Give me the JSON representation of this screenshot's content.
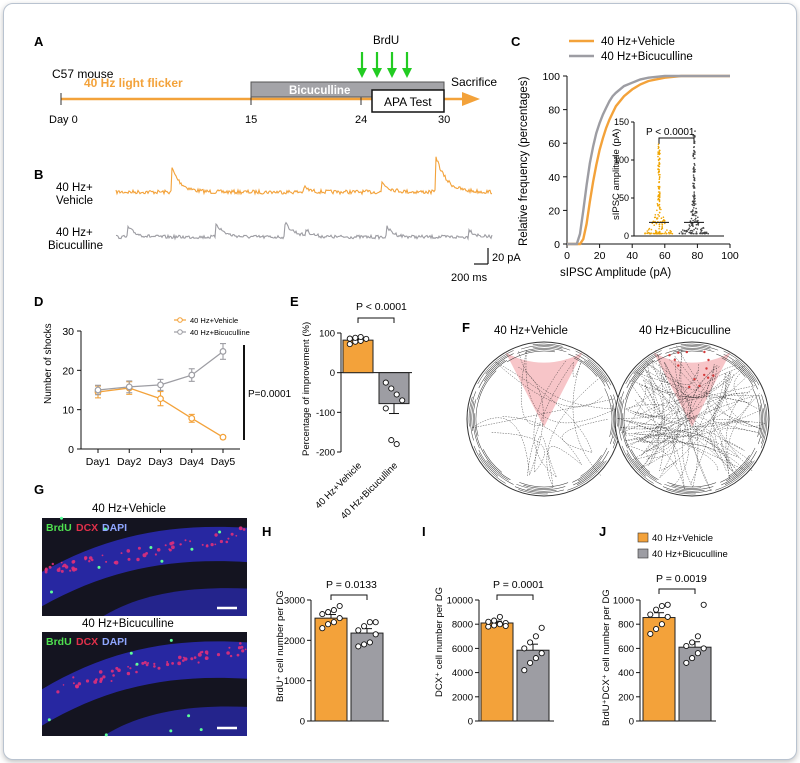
{
  "colors": {
    "vehicle": "#f3a23a",
    "bicuculline": "#9d9da3",
    "star": "#f0a500",
    "axis": "#111111",
    "cone": "#f7c5c8",
    "green": "#22cc22"
  },
  "panels": {
    "A": "A",
    "B": "B",
    "C": "C",
    "D": "D",
    "E": "E",
    "F": "F",
    "G": "G",
    "H": "H",
    "I": "I",
    "J": "J"
  },
  "timeline": {
    "mouse": "C57 mouse",
    "flicker": "40 Hz light flicker",
    "drug": "Bicuculline",
    "brdu": "BrdU",
    "test": "APA Test",
    "sacrifice": "Sacrifice",
    "day0": "Day 0",
    "d15": "15",
    "d24": "24",
    "d30": "30"
  },
  "traces": {
    "vehicle": "40 Hz+\nVehicle",
    "bicuculline": "40 Hz+\nBicuculline",
    "vehicle_l1": "40 Hz+",
    "vehicle_l2": "Vehicle",
    "bic_l1": "40 Hz+",
    "bic_l2": "Bicuculline",
    "scale_y": "20 pA",
    "scale_x": "200 ms"
  },
  "chart_data": [
    {
      "panel": "C",
      "type": "line",
      "xlabel": "sIPSC Amplitude (pA)",
      "ylabel": "Relative frequency (percentages)",
      "xlim": [
        0,
        100
      ],
      "ylim": [
        0,
        100
      ],
      "xticks": [
        "0",
        "20",
        "40",
        "60",
        "80",
        "100"
      ],
      "yticks": [
        "0",
        "20",
        "40",
        "60",
        "80",
        "100"
      ],
      "legend": "top",
      "series": [
        {
          "name": "40 Hz+Vehicle",
          "x": [
            0,
            8,
            10,
            12,
            14,
            16,
            18,
            20,
            22,
            24,
            26,
            28,
            30,
            35,
            40,
            45,
            50,
            60,
            70,
            100
          ],
          "y": [
            0,
            0,
            3,
            12,
            25,
            37,
            47,
            56,
            63,
            69,
            74,
            78,
            82,
            88,
            92,
            95,
            97,
            99,
            100,
            100
          ]
        },
        {
          "name": "40 Hz+Bicuculline",
          "x": [
            0,
            6,
            8,
            10,
            12,
            14,
            16,
            18,
            20,
            22,
            24,
            26,
            28,
            30,
            35,
            40,
            45,
            50,
            60,
            100
          ],
          "y": [
            0,
            0,
            6,
            20,
            35,
            48,
            58,
            66,
            72,
            77,
            81,
            85,
            88,
            90,
            94,
            96,
            98,
            99,
            100,
            100
          ]
        }
      ],
      "inset": {
        "type": "violin",
        "ylabel": "sIPSC amplitude (pA)",
        "ylim": [
          0,
          150
        ],
        "yticks": [
          "0",
          "50",
          "100",
          "150"
        ],
        "p_text": "P < 0.0001",
        "groups": [
          "40 Hz+Vehicle",
          "40 Hz+Bicuculline"
        ]
      }
    },
    {
      "panel": "D",
      "type": "line",
      "xlabel": "",
      "ylabel": "Number of shocks",
      "categories": [
        "Day1",
        "Day2",
        "Day3",
        "Day4",
        "Day5"
      ],
      "ylim": [
        0,
        30
      ],
      "yticks": [
        "0",
        "10",
        "20",
        "30"
      ],
      "legend": "top-right",
      "series": [
        {
          "name": "40 Hz+Vehicle",
          "values": [
            14.5,
            15.5,
            12.8,
            7.8,
            3.0
          ],
          "err": [
            1.5,
            1.6,
            1.8,
            1.0,
            0.4
          ]
        },
        {
          "name": "40 Hz+Bicuculline",
          "values": [
            15.0,
            15.8,
            16.3,
            18.8,
            24.8
          ],
          "err": [
            1.2,
            1.5,
            1.4,
            1.6,
            2.0
          ]
        }
      ],
      "p_text": "P=0.0001"
    },
    {
      "panel": "E",
      "type": "bar",
      "ylabel": "Percentage of improvement (%)",
      "categories": [
        "40 Hz+Vehicle",
        "40 Hz+Bicuculline"
      ],
      "values": [
        82,
        -78
      ],
      "err": [
        6,
        25
      ],
      "points": [
        [
          72,
          78,
          80,
          85,
          86,
          88,
          90
        ],
        [
          -25,
          -40,
          -55,
          -70,
          -90,
          -170,
          -180
        ]
      ],
      "ylim": [
        -200,
        100
      ],
      "yticks": [
        "100",
        "0",
        "-100",
        "-200"
      ],
      "p_text": "P < 0.0001"
    },
    {
      "panel": "H",
      "type": "bar",
      "ylabel": "BrdU⁺ cell number per DG",
      "categories": [
        "40 Hz+Vehicle",
        "40 Hz+Bicuculline"
      ],
      "values": [
        2550,
        2180
      ],
      "err": [
        90,
        110
      ],
      "points": [
        [
          2300,
          2400,
          2450,
          2550,
          2650,
          2700,
          2750,
          2850
        ],
        [
          1850,
          1900,
          1950,
          2150,
          2250,
          2350,
          2450,
          2450
        ]
      ],
      "ylim": [
        0,
        3000
      ],
      "yticks": [
        "0",
        "1000",
        "2000",
        "3000"
      ],
      "p_text": "P = 0.0133"
    },
    {
      "panel": "I",
      "type": "bar",
      "ylabel": "DCX⁺ cell number per DG",
      "categories": [
        "40 Hz+Vehicle",
        "40 Hz+Bicuculline"
      ],
      "values": [
        8100,
        5850
      ],
      "err": [
        150,
        500
      ],
      "points": [
        [
          7800,
          7900,
          8000,
          8100,
          8200,
          8300,
          8600,
          7850
        ],
        [
          4200,
          4800,
          5200,
          5600,
          6000,
          6500,
          7000,
          7700
        ]
      ],
      "ylim": [
        0,
        10000
      ],
      "yticks": [
        "0",
        "2000",
        "4000",
        "6000",
        "8000",
        "10000"
      ],
      "p_text": "P = 0.0001"
    },
    {
      "panel": "J",
      "type": "bar",
      "ylabel": "BrdU⁺DCX⁺ cell number per DG",
      "categories": [
        "40 Hz+Vehicle",
        "40 Hz+Bicuculline"
      ],
      "values": [
        855,
        610
      ],
      "err": [
        40,
        45
      ],
      "points": [
        [
          720,
          760,
          800,
          860,
          880,
          920,
          950,
          960
        ],
        [
          480,
          520,
          560,
          600,
          620,
          650,
          700,
          960
        ]
      ],
      "ylim": [
        0,
        1000
      ],
      "yticks": [
        "0",
        "200",
        "400",
        "600",
        "800",
        "1000"
      ],
      "legend": "top",
      "p_text": "P = 0.0019"
    }
  ],
  "maze": {
    "vehicle_title": "40 Hz+Vehicle",
    "bic_title": "40 Hz+Bicuculline"
  },
  "histology": {
    "vehicle_title": "40 Hz+Vehicle",
    "bic_title": "40 Hz+Bicuculline",
    "brdu": "BrdU",
    "dcx": "DCX",
    "dapi": "DAPI"
  },
  "legend_labels": {
    "vehicle": "40 Hz+Vehicle",
    "bicuculline": "40 Hz+Bicuculline"
  },
  "bar_categories": [
    "40 Hz+Vehicle",
    "40 Hz+Bicuculline"
  ]
}
